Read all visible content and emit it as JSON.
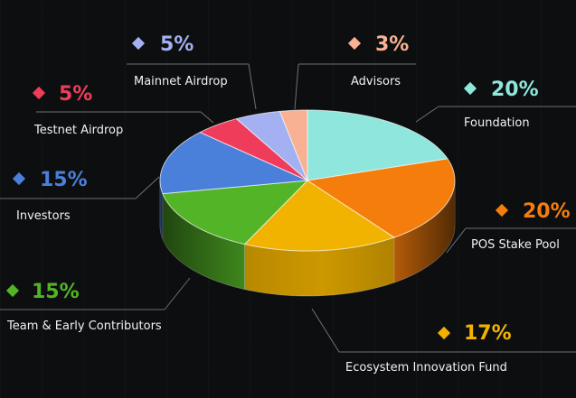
{
  "chart_data": {
    "type": "pie",
    "style": "3d",
    "start": "top",
    "direction": "clockwise",
    "slices": [
      {
        "label": "Foundation",
        "value": 20,
        "pct_text": "20%",
        "color": "#8ee6dc"
      },
      {
        "label": "POS Stake Pool",
        "value": 20,
        "pct_text": "20%",
        "color": "#f57d0c"
      },
      {
        "label": "Ecosystem Innovation Fund",
        "value": 17,
        "pct_text": "17%",
        "color": "#f1b300"
      },
      {
        "label": "Team & Early Contributors",
        "value": 15,
        "pct_text": "15%",
        "color": "#53b427"
      },
      {
        "label": "Investors",
        "value": 15,
        "pct_text": "15%",
        "color": "#4a7fda"
      },
      {
        "label": "Testnet Airdrop",
        "value": 5,
        "pct_text": "5%",
        "color": "#ef3c5b"
      },
      {
        "label": "Mainnet Airdrop",
        "value": 5,
        "pct_text": "5%",
        "color": "#a3b1f2"
      },
      {
        "label": "Advisors",
        "value": 3,
        "pct_text": "3%",
        "color": "#f8b192"
      }
    ],
    "legend": "callouts-around-pie"
  }
}
